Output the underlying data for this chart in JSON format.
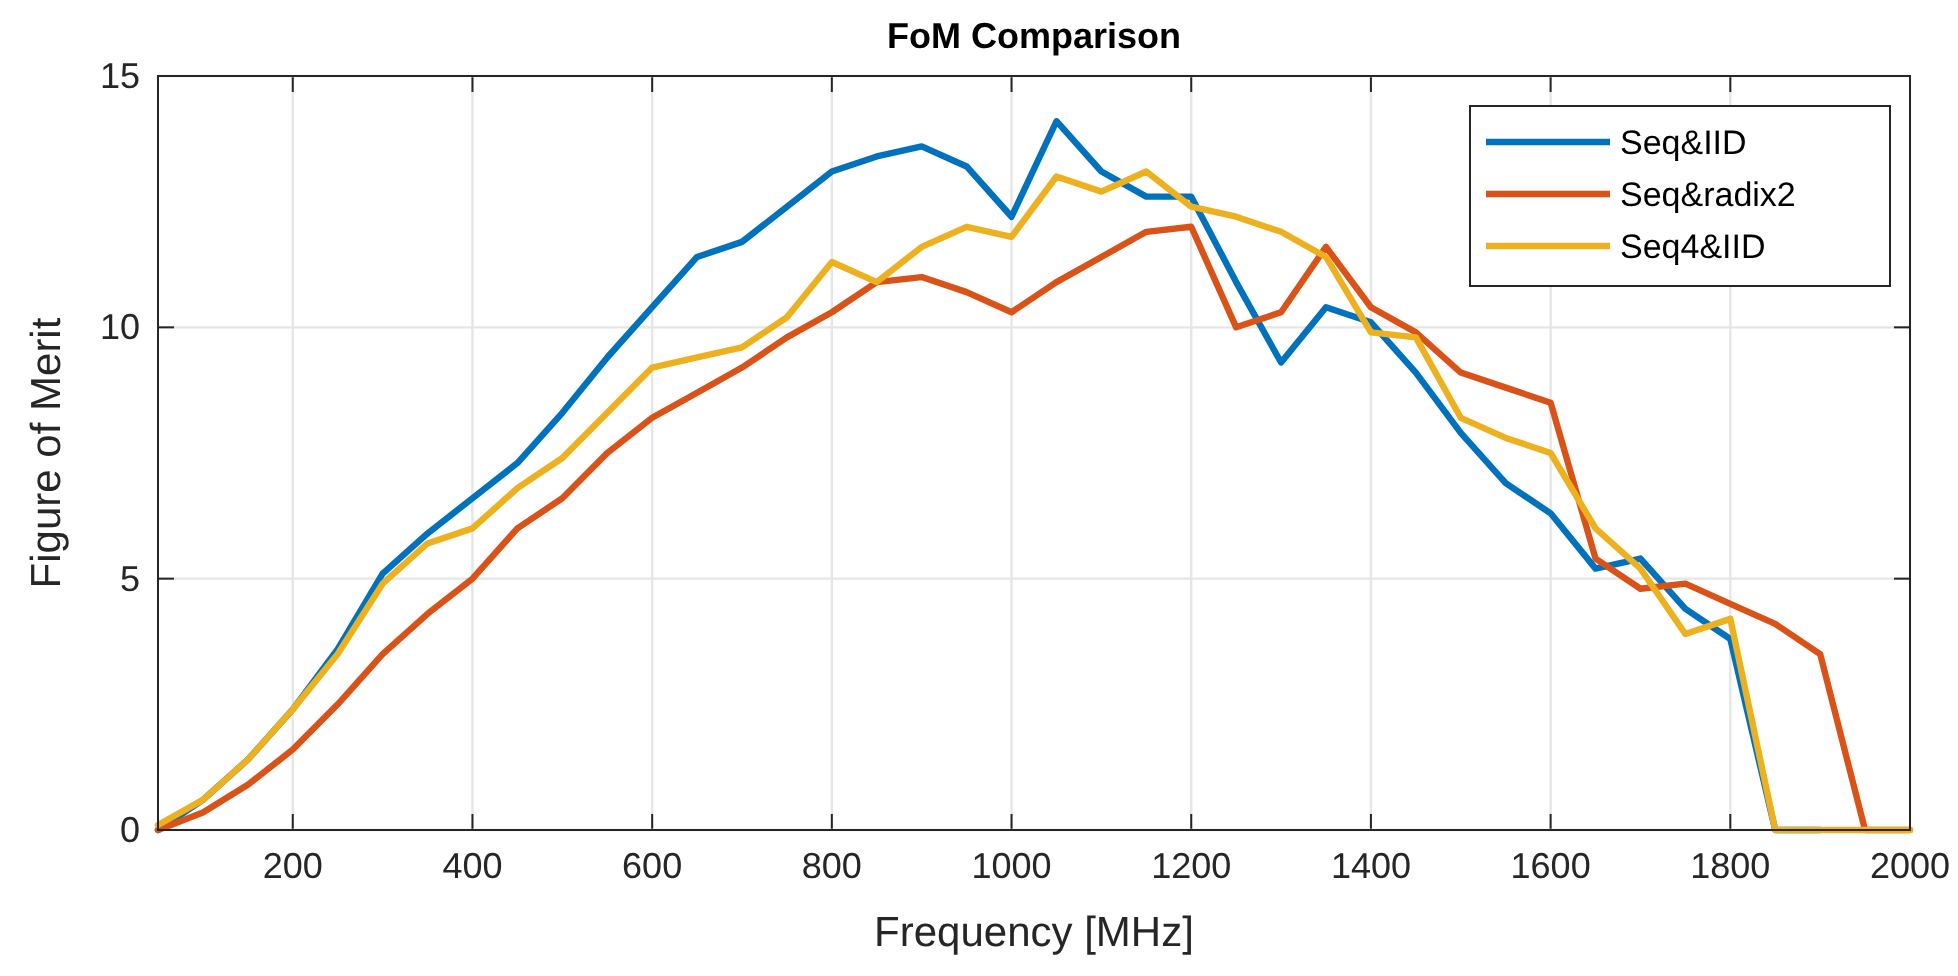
{
  "chart_data": {
    "type": "line",
    "title": "FoM Comparison",
    "xlabel": "Frequency [MHz]",
    "ylabel": "Figure of Merit",
    "x": [
      50,
      100,
      150,
      200,
      250,
      300,
      350,
      400,
      450,
      500,
      550,
      600,
      650,
      700,
      750,
      800,
      850,
      900,
      950,
      1000,
      1050,
      1100,
      1150,
      1200,
      1250,
      1300,
      1350,
      1400,
      1450,
      1500,
      1550,
      1600,
      1650,
      1700,
      1750,
      1800,
      1850,
      1900,
      1950,
      2000
    ],
    "series": [
      {
        "name": "Seq&IID",
        "color": "#0072bd",
        "values": [
          0,
          0.6,
          1.4,
          2.4,
          3.6,
          5.1,
          5.9,
          6.6,
          7.3,
          8.3,
          9.4,
          10.4,
          11.4,
          11.7,
          12.4,
          13.1,
          13.4,
          13.6,
          13.2,
          12.2,
          14.1,
          13.1,
          12.6,
          12.6,
          10.9,
          9.3,
          10.4,
          10.1,
          9.1,
          7.9,
          6.9,
          6.3,
          5.2,
          5.4,
          4.4,
          3.8,
          0,
          0,
          null,
          null
        ]
      },
      {
        "name": "Seq&radix2",
        "color": "#d95319",
        "values": [
          0,
          0.35,
          0.9,
          1.6,
          2.5,
          3.5,
          4.3,
          5.0,
          6.0,
          6.6,
          7.5,
          8.2,
          8.7,
          9.2,
          9.8,
          10.3,
          10.9,
          11.0,
          10.7,
          10.3,
          10.9,
          11.4,
          11.9,
          12.0,
          10.0,
          10.3,
          11.6,
          10.4,
          9.9,
          9.1,
          8.8,
          8.5,
          5.4,
          4.8,
          4.9,
          4.5,
          4.1,
          3.5,
          0,
          0
        ]
      },
      {
        "name": "Seq4&IID",
        "color": "#edb120",
        "values": [
          0.1,
          0.6,
          1.4,
          2.4,
          3.5,
          4.9,
          5.7,
          6.0,
          6.8,
          7.4,
          8.3,
          9.2,
          9.4,
          9.6,
          10.2,
          11.3,
          10.9,
          11.6,
          12.0,
          11.8,
          13.0,
          12.7,
          13.1,
          12.4,
          12.2,
          11.9,
          11.4,
          9.9,
          9.8,
          8.2,
          7.8,
          7.5,
          6.0,
          5.2,
          3.9,
          4.2,
          0,
          0,
          0,
          0
        ]
      }
    ],
    "xlim": [
      50,
      2000
    ],
    "xticks": [
      200,
      400,
      600,
      800,
      1000,
      1200,
      1400,
      1600,
      1800,
      2000
    ],
    "ylim": [
      0,
      15
    ],
    "yticks": [
      0,
      5,
      10,
      15
    ],
    "grid": true,
    "legend": "top right",
    "line_style": "solid",
    "marker": "none"
  }
}
